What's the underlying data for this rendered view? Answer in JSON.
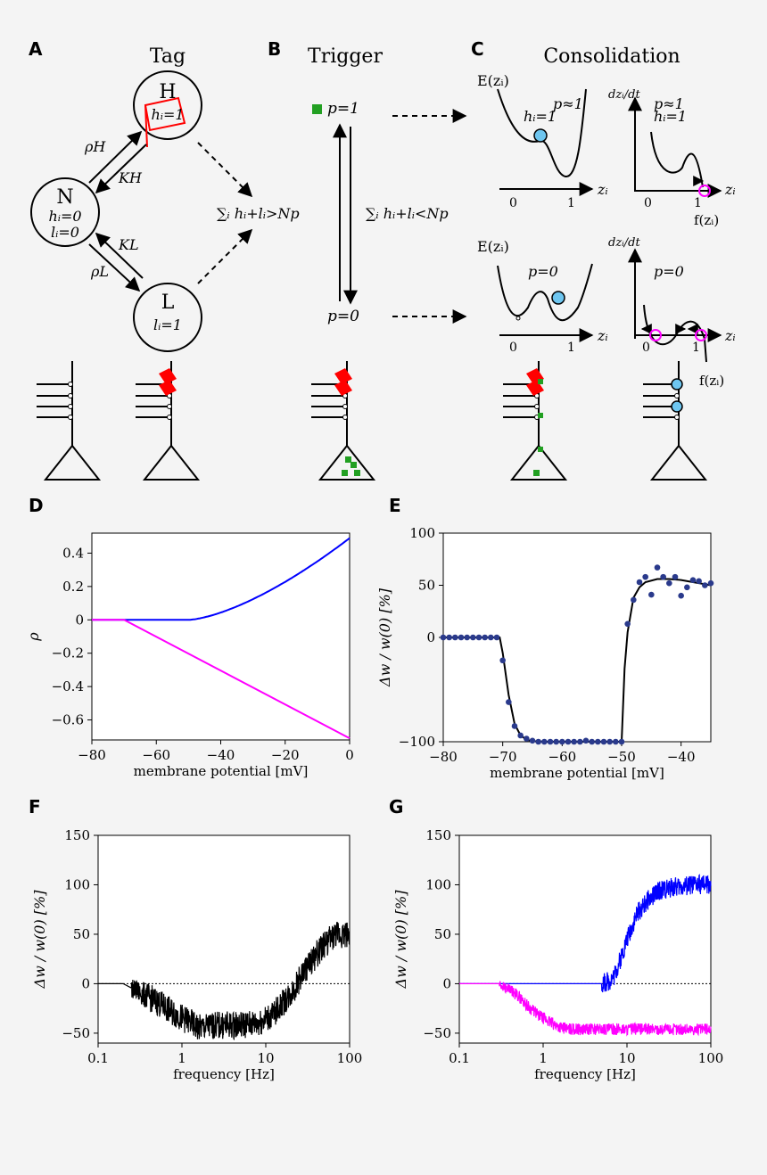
{
  "panels": {
    "A": "A",
    "B": "B",
    "C": "C",
    "D": "D",
    "E": "E",
    "F": "F",
    "G": "G"
  },
  "top": {
    "title_tag": "Tag",
    "title_trigger": "Trigger",
    "title_consolidation": "Consolidation",
    "state_H": "H",
    "state_H_sub": "hᵢ=1",
    "state_N": "N",
    "state_N_sub1": "hᵢ=0",
    "state_N_sub2": "lᵢ=0",
    "state_L": "L",
    "state_L_sub": "lᵢ=1",
    "rho_H": "ρH",
    "K_H": "KH",
    "K_L": "KL",
    "rho_L": "ρL",
    "sum_gt": "∑ᵢ hᵢ+lᵢ>Np",
    "sum_lt": "∑ᵢ hᵢ+lᵢ<Np",
    "p1": "p=1",
    "p0": "p=0",
    "E_label": "E(zᵢ)",
    "dz_label": "dzᵢ/dt",
    "p_approx1": "p≈1",
    "h1": "hᵢ=1",
    "p_zero": "p=0",
    "z_axis": "zᵢ",
    "tick0": "0",
    "tick1": "1",
    "f_label": "f(zᵢ)"
  },
  "colors": {
    "blue": "#0000ff",
    "magenta": "#ff00ff",
    "green": "#22a022",
    "red": "#ff0000",
    "light_blue": "#6ec6f0",
    "navy": "#2a3a8c"
  },
  "chart_data": [
    {
      "panel": "D",
      "type": "line",
      "xlabel": "membrane potential [mV]",
      "ylabel": "ρ",
      "xlim": [
        -80,
        0
      ],
      "ylim": [
        -0.72,
        0.52
      ],
      "xticks": [
        -80,
        -60,
        -40,
        -20,
        0
      ],
      "xtick_labels": [
        "−80",
        "−60",
        "−40",
        "−20",
        "0"
      ],
      "yticks": [
        0.4,
        0.2,
        0,
        -0.2,
        -0.4,
        -0.6
      ],
      "ytick_labels": [
        "0.4",
        "0.2",
        "0",
        "−0.2",
        "−0.4",
        "−0.6"
      ],
      "series": [
        {
          "color": "blue",
          "x": [
            -80,
            -70,
            -50,
            -40,
            -30,
            -20,
            -10,
            0
          ],
          "y": [
            0,
            0,
            0,
            0.06,
            0.15,
            0.25,
            0.36,
            0.49
          ]
        },
        {
          "color": "magenta",
          "x": [
            -80,
            -70,
            0
          ],
          "y": [
            0,
            0,
            -0.71
          ]
        }
      ]
    },
    {
      "panel": "E",
      "type": "scatter",
      "xlabel": "membrane potential [mV]",
      "ylabel": "Δw / w(0) [%]",
      "xlim": [
        -80,
        -35
      ],
      "ylim": [
        -100,
        100
      ],
      "xticks": [
        -80,
        -70,
        -60,
        -50,
        -40
      ],
      "xtick_labels": [
        "−80",
        "−70",
        "−60",
        "−50",
        "−40"
      ],
      "yticks": [
        100,
        50,
        0,
        -100
      ],
      "ytick_labels": [
        "100",
        "50",
        "0",
        "−100"
      ],
      "points_x": [
        -80,
        -79,
        -78,
        -77,
        -76,
        -75,
        -74,
        -73,
        -72,
        -71,
        -70,
        -69,
        -68,
        -67,
        -66,
        -65,
        -64,
        -63,
        -62,
        -61,
        -60,
        -59,
        -58,
        -57,
        -56,
        -55,
        -54,
        -53,
        -52,
        -51,
        -50,
        -49,
        -48,
        -47,
        -46,
        -45,
        -44,
        -43,
        -42,
        -41,
        -40,
        -39,
        -38,
        -37,
        -36,
        -35
      ],
      "points_y": [
        0,
        0,
        0,
        0,
        0,
        0,
        0,
        0,
        0,
        0,
        -22,
        -62,
        -85,
        -94,
        -97,
        -99,
        -100,
        -100,
        -100,
        -100,
        -100,
        -100,
        -100,
        -100,
        -99,
        -100,
        -100,
        -100,
        -100,
        -100,
        -100,
        13,
        36,
        53,
        58,
        41,
        67,
        58,
        52,
        58,
        40,
        48,
        55,
        54,
        50,
        52
      ],
      "fit_x": [
        -80,
        -70.5,
        -70,
        -69,
        -68,
        -67,
        -66,
        -65,
        -63,
        -60,
        -50,
        -49.5,
        -49,
        -48,
        -47,
        -46,
        -44,
        -42,
        -40,
        -38,
        -36,
        -35
      ],
      "fit_y": [
        0,
        0,
        -15,
        -55,
        -83,
        -94,
        -98,
        -99.5,
        -100,
        -100,
        -100,
        -30,
        5,
        38,
        48,
        53,
        56,
        56,
        55,
        53,
        51,
        50
      ]
    },
    {
      "panel": "F",
      "type": "line",
      "xscale": "log",
      "xlabel": "frequency [Hz]",
      "ylabel": "Δw / w(0) [%]",
      "xlim": [
        0.1,
        100
      ],
      "ylim": [
        -60,
        150
      ],
      "xticks": [
        0.1,
        1,
        10,
        100
      ],
      "xtick_labels": [
        "0.1",
        "1",
        "10",
        "100"
      ],
      "yticks": [
        150,
        100,
        50,
        0,
        -50
      ],
      "ytick_labels": [
        "150",
        "100",
        "50",
        "0",
        "−50"
      ],
      "zero_line": "dotted",
      "series": [
        {
          "color": "black",
          "x": [
            0.1,
            0.2,
            0.3,
            0.5,
            0.8,
            1.2,
            1.6,
            2.5,
            4,
            8,
            12,
            20,
            30,
            50,
            70,
            100
          ],
          "y": [
            0,
            0,
            -8,
            -18,
            -30,
            -38,
            -45,
            -42,
            -42,
            -40,
            -32,
            -10,
            15,
            40,
            50,
            50
          ],
          "noise": 14
        }
      ]
    },
    {
      "panel": "G",
      "type": "line",
      "xscale": "log",
      "xlabel": "frequency [Hz]",
      "ylabel": "Δw / w(0) [%]",
      "xlim": [
        0.1,
        100
      ],
      "ylim": [
        -60,
        150
      ],
      "xticks": [
        0.1,
        1,
        10,
        100
      ],
      "xtick_labels": [
        "0.1",
        "1",
        "10",
        "100"
      ],
      "yticks": [
        150,
        100,
        50,
        0,
        -50
      ],
      "ytick_labels": [
        "150",
        "100",
        "50",
        "0",
        "−50"
      ],
      "zero_line": "dotted",
      "series": [
        {
          "color": "blue",
          "x": [
            0.1,
            5,
            6,
            7,
            8,
            10,
            13,
            18,
            25,
            40,
            60,
            100
          ],
          "y": [
            0,
            0,
            2,
            8,
            20,
            45,
            70,
            85,
            95,
            98,
            100,
            100
          ],
          "noise": 10
        },
        {
          "color": "magenta",
          "x": [
            0.1,
            0.3,
            0.5,
            0.7,
            1,
            1.5,
            2,
            5,
            20,
            100
          ],
          "y": [
            0,
            0,
            -12,
            -25,
            -35,
            -43,
            -46,
            -46,
            -46,
            -46
          ],
          "noise": 6
        }
      ]
    }
  ]
}
